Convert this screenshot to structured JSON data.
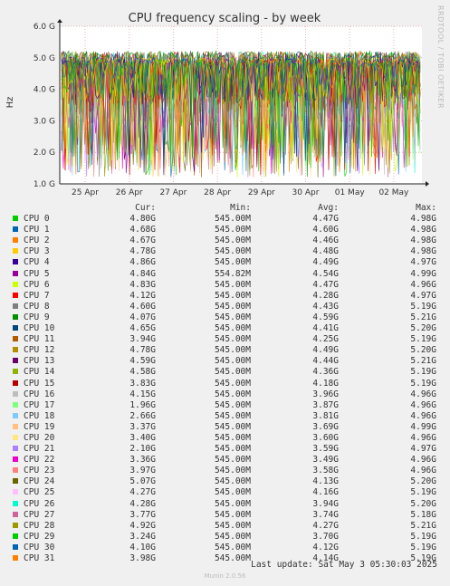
{
  "title": "CPU frequency scaling - by week",
  "side_label": "RRDTOOL / TOBI OETIKER",
  "chart_data": {
    "type": "line",
    "title": "CPU frequency scaling - by week",
    "ylabel": "Hz",
    "ylim": [
      1000000000,
      6000000000
    ],
    "y_ticks": [
      "1.0 G",
      "2.0 G",
      "3.0 G",
      "4.0 G",
      "5.0 G",
      "6.0 G"
    ],
    "y_tick_values": [
      1000000000,
      2000000000,
      3000000000,
      4000000000,
      5000000000,
      6000000000
    ],
    "x_ticks": [
      "25 Apr",
      "26 Apr",
      "27 Apr",
      "28 Apr",
      "29 Apr",
      "30 Apr",
      "01 May",
      "02 May"
    ],
    "x_range": [
      "2025-04-24",
      "2025-05-03 05:30"
    ],
    "grid": true,
    "series": [
      {
        "name": "CPU 0",
        "color": "#00cc00",
        "cur": "4.80G",
        "min": "545.00M",
        "avg": "4.47G",
        "max": "4.98G"
      },
      {
        "name": "CPU 1",
        "color": "#0066b3",
        "cur": "4.68G",
        "min": "545.00M",
        "avg": "4.60G",
        "max": "4.98G"
      },
      {
        "name": "CPU 2",
        "color": "#ff8000",
        "cur": "4.67G",
        "min": "545.00M",
        "avg": "4.46G",
        "max": "4.98G"
      },
      {
        "name": "CPU 3",
        "color": "#ffcc00",
        "cur": "4.78G",
        "min": "545.00M",
        "avg": "4.48G",
        "max": "4.98G"
      },
      {
        "name": "CPU 4",
        "color": "#330099",
        "cur": "4.86G",
        "min": "545.00M",
        "avg": "4.49G",
        "max": "4.97G"
      },
      {
        "name": "CPU 5",
        "color": "#990099",
        "cur": "4.84G",
        "min": "554.82M",
        "avg": "4.54G",
        "max": "4.99G"
      },
      {
        "name": "CPU 6",
        "color": "#ccff00",
        "cur": "4.83G",
        "min": "545.00M",
        "avg": "4.47G",
        "max": "4.96G"
      },
      {
        "name": "CPU 7",
        "color": "#ff0000",
        "cur": "4.12G",
        "min": "545.00M",
        "avg": "4.28G",
        "max": "4.97G"
      },
      {
        "name": "CPU 8",
        "color": "#808080",
        "cur": "4.60G",
        "min": "545.00M",
        "avg": "4.43G",
        "max": "5.19G"
      },
      {
        "name": "CPU 9",
        "color": "#008f00",
        "cur": "4.07G",
        "min": "545.00M",
        "avg": "4.59G",
        "max": "5.21G"
      },
      {
        "name": "CPU 10",
        "color": "#00487d",
        "cur": "4.65G",
        "min": "545.00M",
        "avg": "4.41G",
        "max": "5.20G"
      },
      {
        "name": "CPU 11",
        "color": "#b35a00",
        "cur": "3.94G",
        "min": "545.00M",
        "avg": "4.25G",
        "max": "5.19G"
      },
      {
        "name": "CPU 12",
        "color": "#b38f00",
        "cur": "4.78G",
        "min": "545.00M",
        "avg": "4.49G",
        "max": "5.20G"
      },
      {
        "name": "CPU 13",
        "color": "#6b006b",
        "cur": "4.59G",
        "min": "545.00M",
        "avg": "4.44G",
        "max": "5.21G"
      },
      {
        "name": "CPU 14",
        "color": "#8fb300",
        "cur": "4.58G",
        "min": "545.00M",
        "avg": "4.36G",
        "max": "5.19G"
      },
      {
        "name": "CPU 15",
        "color": "#b30000",
        "cur": "3.83G",
        "min": "545.00M",
        "avg": "4.18G",
        "max": "5.19G"
      },
      {
        "name": "CPU 16",
        "color": "#bebebe",
        "cur": "4.15G",
        "min": "545.00M",
        "avg": "3.96G",
        "max": "4.96G"
      },
      {
        "name": "CPU 17",
        "color": "#80ff80",
        "cur": "1.96G",
        "min": "545.00M",
        "avg": "3.87G",
        "max": "4.96G"
      },
      {
        "name": "CPU 18",
        "color": "#80c9ff",
        "cur": "2.66G",
        "min": "545.00M",
        "avg": "3.81G",
        "max": "4.96G"
      },
      {
        "name": "CPU 19",
        "color": "#ffc080",
        "cur": "3.37G",
        "min": "545.00M",
        "avg": "3.69G",
        "max": "4.99G"
      },
      {
        "name": "CPU 20",
        "color": "#ffe680",
        "cur": "3.40G",
        "min": "545.00M",
        "avg": "3.60G",
        "max": "4.96G"
      },
      {
        "name": "CPU 21",
        "color": "#aa80ff",
        "cur": "2.10G",
        "min": "545.00M",
        "avg": "3.59G",
        "max": "4.97G"
      },
      {
        "name": "CPU 22",
        "color": "#ee00cc",
        "cur": "3.36G",
        "min": "545.00M",
        "avg": "3.49G",
        "max": "4.96G"
      },
      {
        "name": "CPU 23",
        "color": "#ff8080",
        "cur": "3.97G",
        "min": "545.00M",
        "avg": "3.58G",
        "max": "4.96G"
      },
      {
        "name": "CPU 24",
        "color": "#666600",
        "cur": "5.07G",
        "min": "545.00M",
        "avg": "4.13G",
        "max": "5.20G"
      },
      {
        "name": "CPU 25",
        "color": "#ffbfff",
        "cur": "4.27G",
        "min": "545.00M",
        "avg": "4.16G",
        "max": "5.19G"
      },
      {
        "name": "CPU 26",
        "color": "#00ffcc",
        "cur": "4.28G",
        "min": "545.00M",
        "avg": "3.94G",
        "max": "5.20G"
      },
      {
        "name": "CPU 27",
        "color": "#cc6699",
        "cur": "3.77G",
        "min": "545.00M",
        "avg": "3.74G",
        "max": "5.18G"
      },
      {
        "name": "CPU 28",
        "color": "#999900",
        "cur": "4.92G",
        "min": "545.00M",
        "avg": "4.27G",
        "max": "5.21G"
      },
      {
        "name": "CPU 29",
        "color": "#00cc00",
        "cur": "3.24G",
        "min": "545.00M",
        "avg": "3.70G",
        "max": "5.19G"
      },
      {
        "name": "CPU 30",
        "color": "#0066b3",
        "cur": "4.10G",
        "min": "545.00M",
        "avg": "4.12G",
        "max": "5.19G"
      },
      {
        "name": "CPU 31",
        "color": "#ff8000",
        "cur": "3.98G",
        "min": "545.00M",
        "avg": "4.14G",
        "max": "5.19G"
      }
    ]
  },
  "legend": {
    "headers": {
      "cur": "Cur:",
      "min": "Min:",
      "avg": "Avg:",
      "max": "Max:"
    }
  },
  "last_update": "Last update: Sat May  3 05:30:03 2025",
  "footer": "Munin 2.0.56"
}
